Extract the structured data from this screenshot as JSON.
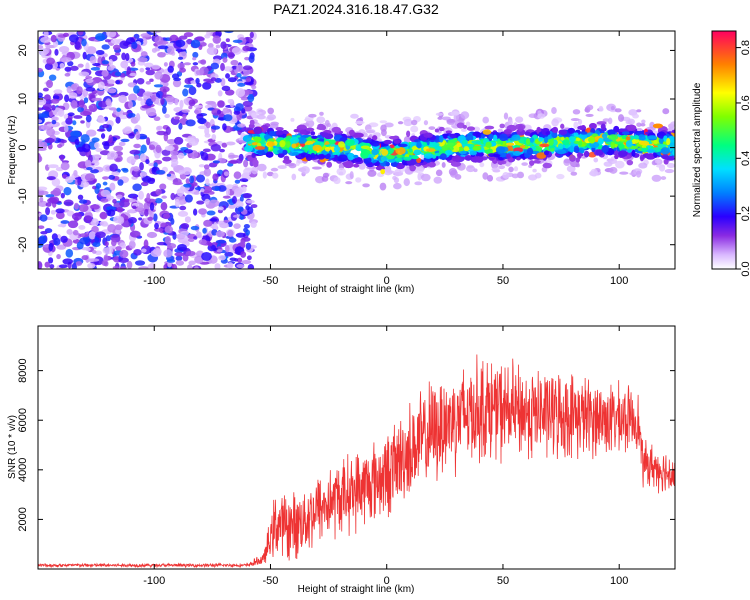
{
  "title": "PAZ1.2024.316.18.47.G32",
  "chart_data": [
    {
      "type": "heatmap",
      "xlabel": "Height of straight line (km)",
      "ylabel": "Frequency (Hz)",
      "xlim": [
        -150,
        124
      ],
      "ylim": [
        -25,
        24
      ],
      "xticks": [
        -100,
        -50,
        0,
        50,
        100
      ],
      "yticks": [
        -20,
        -10,
        0,
        10,
        20
      ],
      "colorbar": {
        "label": "Normalized spectral amplitude",
        "range": [
          0,
          0.86
        ],
        "ticks": [
          0.0,
          0.2,
          0.4,
          0.6,
          0.8
        ]
      },
      "regions": [
        {
          "x_range": [
            -150,
            -60
          ],
          "frequency_range": [
            -25,
            24
          ],
          "amplitude": "noise, low (~0.0–0.1)"
        },
        {
          "x_range": [
            -60,
            124
          ],
          "frequency_range": [
            -3,
            5
          ],
          "amplitude": "signal band centred near 0–2 Hz, up to ~0.86"
        }
      ],
      "signal_centre_hz": [
        {
          "x": -55,
          "f": 1.0
        },
        {
          "x": -20,
          "f": 0.0
        },
        {
          "x": 0,
          "f": -1.5
        },
        {
          "x": 30,
          "f": 0.5
        },
        {
          "x": 60,
          "f": 0.5
        },
        {
          "x": 90,
          "f": 1.5
        },
        {
          "x": 120,
          "f": 0.5
        }
      ]
    },
    {
      "type": "line",
      "xlabel": "Height of straight line (km)",
      "ylabel": "SNR (10 * v/v)",
      "xlim": [
        -150,
        124
      ],
      "ylim": [
        0,
        9800
      ],
      "xticks": [
        -100,
        -50,
        0,
        50,
        100
      ],
      "yticks": [
        2000,
        4000,
        6000,
        8000
      ],
      "color": "#ee3333",
      "envelope": [
        {
          "x": -150,
          "mean": 150,
          "spread": 80
        },
        {
          "x": -60,
          "mean": 150,
          "spread": 80
        },
        {
          "x": -53,
          "mean": 400,
          "spread": 300
        },
        {
          "x": -48,
          "mean": 1800,
          "spread": 1500
        },
        {
          "x": -40,
          "mean": 1700,
          "spread": 1600
        },
        {
          "x": -30,
          "mean": 2400,
          "spread": 1700
        },
        {
          "x": -20,
          "mean": 2900,
          "spread": 1800
        },
        {
          "x": -10,
          "mean": 3300,
          "spread": 1900
        },
        {
          "x": 0,
          "mean": 3800,
          "spread": 2000
        },
        {
          "x": 10,
          "mean": 4800,
          "spread": 2300
        },
        {
          "x": 25,
          "mean": 5900,
          "spread": 2500
        },
        {
          "x": 40,
          "mean": 6500,
          "spread": 2500
        },
        {
          "x": 60,
          "mean": 6300,
          "spread": 2200
        },
        {
          "x": 80,
          "mean": 6200,
          "spread": 2000
        },
        {
          "x": 100,
          "mean": 6000,
          "spread": 1700
        },
        {
          "x": 108,
          "mean": 6100,
          "spread": 1400
        },
        {
          "x": 110,
          "mean": 4300,
          "spread": 1100
        },
        {
          "x": 124,
          "mean": 3800,
          "spread": 1000
        }
      ]
    }
  ]
}
